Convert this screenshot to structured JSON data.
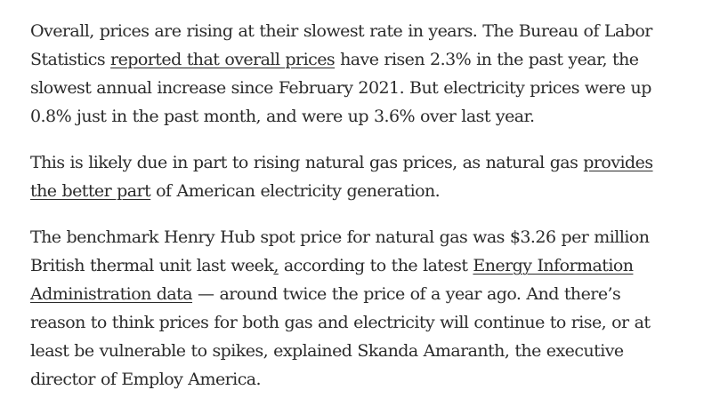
{
  "article": {
    "p1": {
      "l1": "Overall, prices are rising at their slowest rate in years. The Bureau of Labor",
      "l2_pre": "Statistics ",
      "l2_link": "reported that overall prices",
      "l2_post": " have risen 2.3% in the past year, the",
      "l3": "slowest annual increase since February 2021. But electricity prices were up",
      "l4": "0.8% just in the past month, and were up 3.6% over last year."
    },
    "p2": {
      "l1_pre": "This is likely due in part to rising natural gas prices, as natural gas ",
      "l1_link": "provides",
      "l2_link": "the better part",
      "l2_post": " of American electricity generation."
    },
    "p3": {
      "l1": "The benchmark Henry Hub spot price for natural gas was $3.26 per million",
      "l2_pre": "British thermal unit last week",
      "l2_link_comma": ",",
      "l2_mid": " according to the latest ",
      "l2_link": "Energy Information",
      "l3_link": "Administration data",
      "l3_post": " — around twice the price of a year ago. And there’s",
      "l4": "reason to think prices for both gas and electricity will continue to rise, or at",
      "l5": "least be vulnerable to spikes, explained Skanda Amaranth, the executive",
      "l6": "director of Employ America."
    }
  }
}
